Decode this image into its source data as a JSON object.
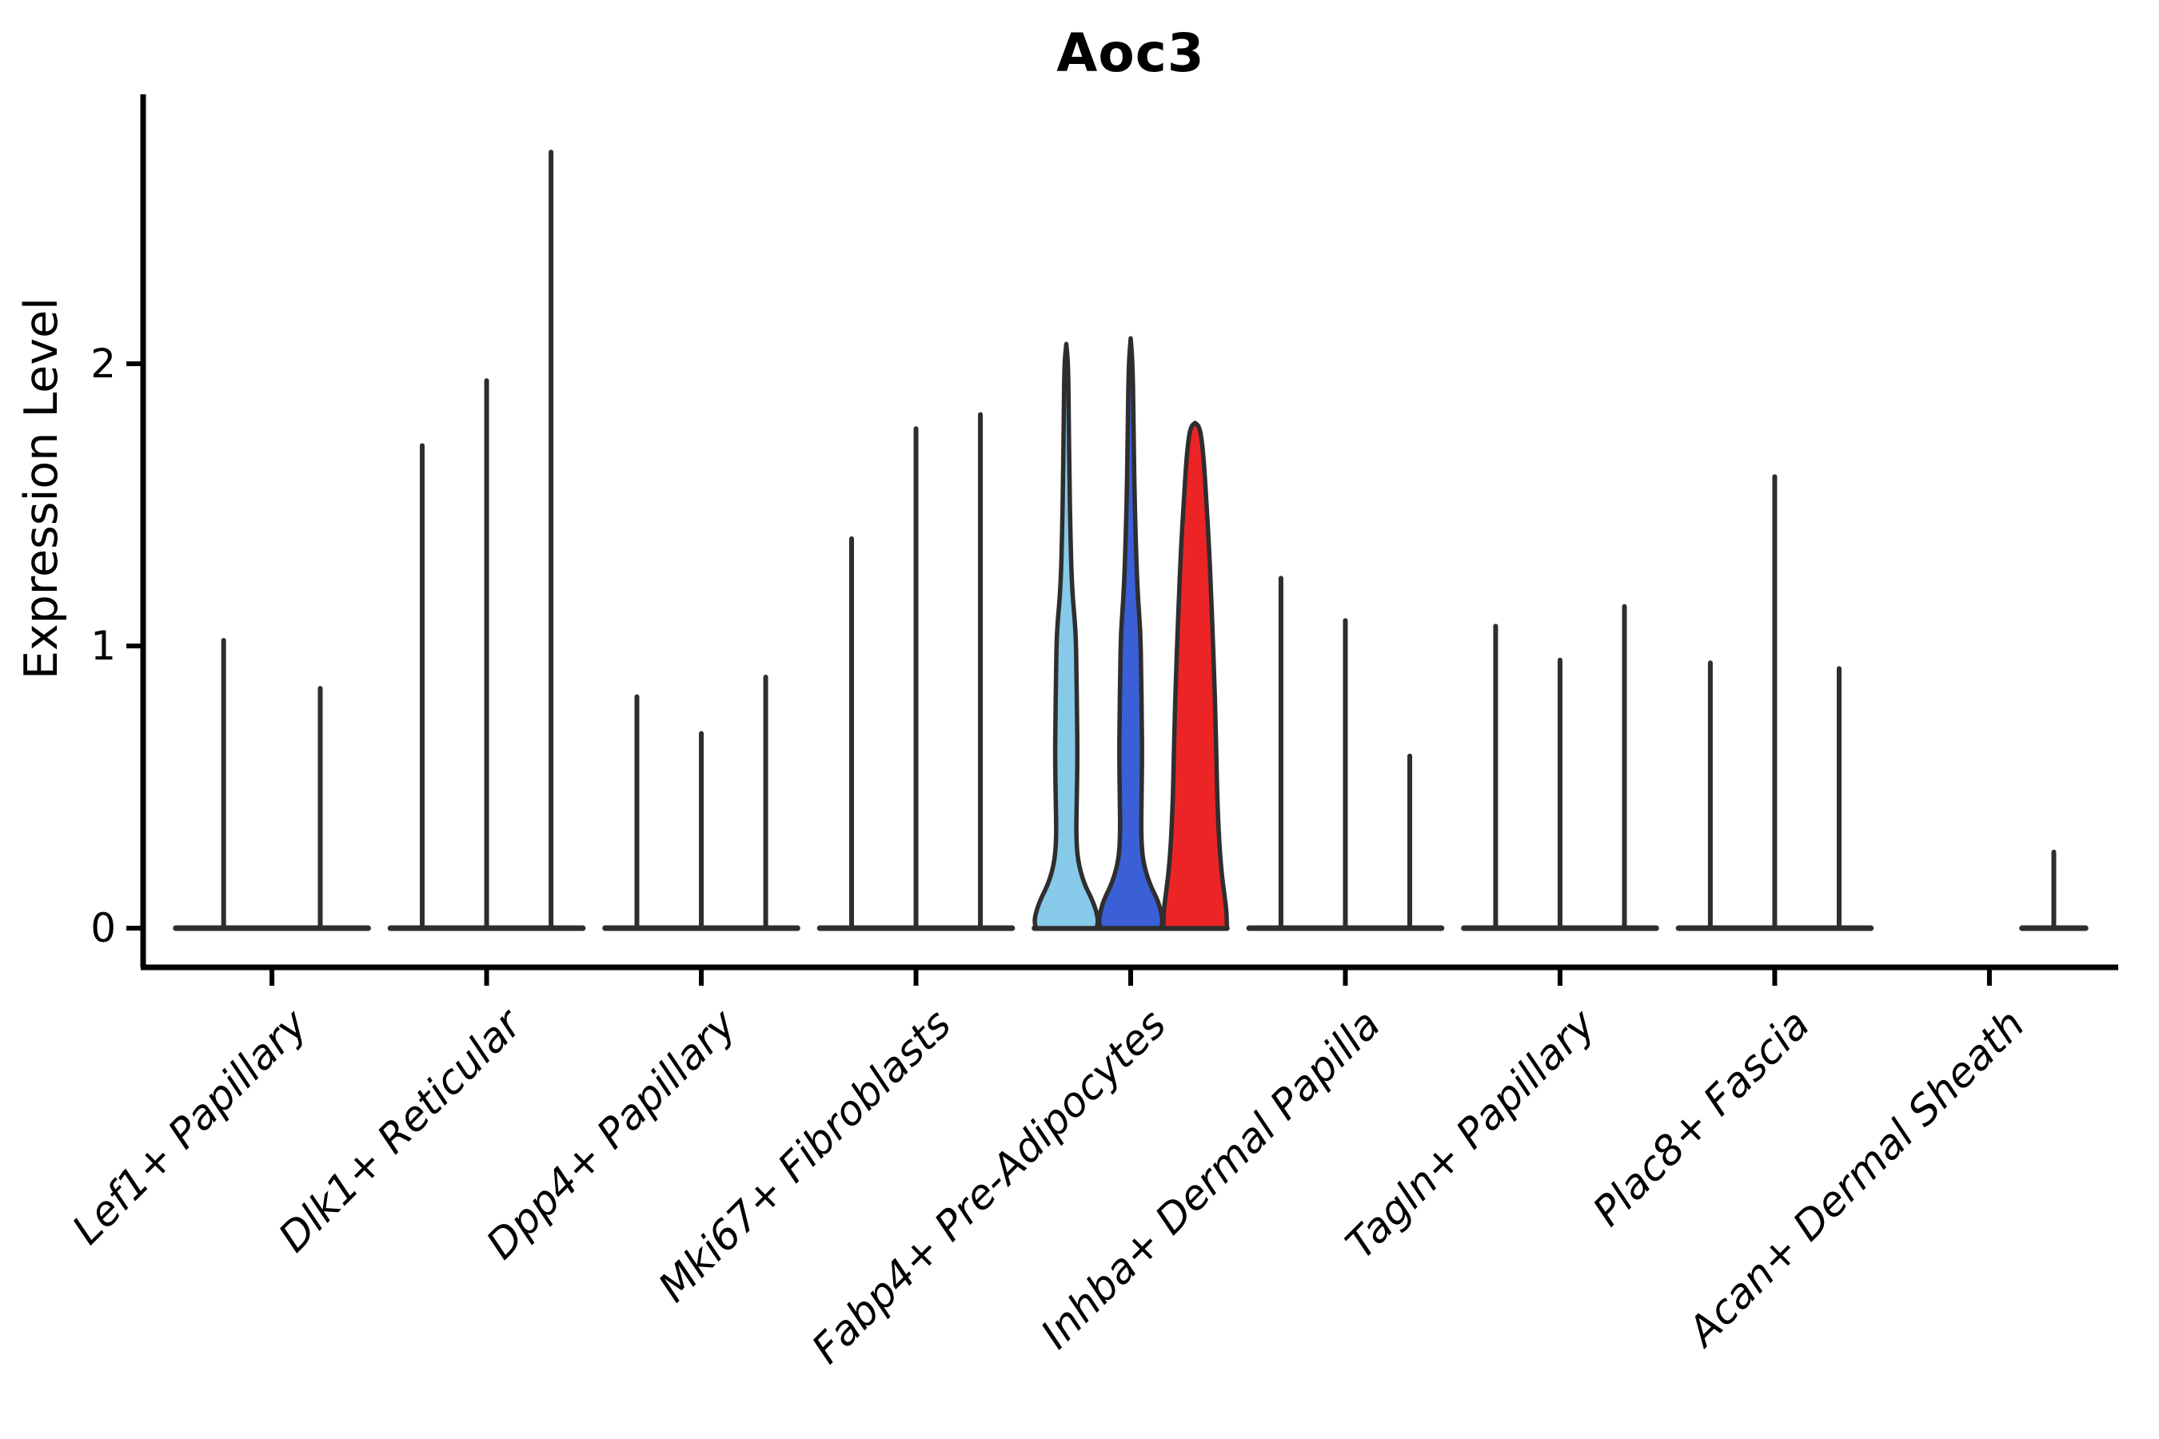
{
  "title": "Aoc3",
  "chart_data": {
    "type": "violin",
    "title": "Aoc3",
    "xlabel": "",
    "ylabel": "Expression Level",
    "ylim": [
      0,
      2.95
    ],
    "yticks": [
      0,
      1,
      2
    ],
    "grid": false,
    "legend": "none",
    "outline_color": "#2e2e2e",
    "split_colors": {
      "lightblue": "#87c9e8",
      "blue": "#3a5fd7",
      "red": "#ec2426"
    },
    "categories": [
      "Lef1+ Papillary",
      "Dlk1+ Reticular",
      "Dpp4+ Papillary",
      "Mki67+ Fibroblasts",
      "Fabp4+ Pre-Adipocytes",
      "Inhba+ Dermal Papilla",
      "Tagln+ Papillary",
      "Plac8+ Fascia",
      "Acan+ Dermal Sheath"
    ],
    "groups": [
      {
        "category": "Lef1+ Papillary",
        "violins": [
          {
            "slot": 0,
            "of": 2,
            "max": 1.02
          },
          {
            "slot": 1,
            "of": 2,
            "max": 0.85
          }
        ]
      },
      {
        "category": "Dlk1+ Reticular",
        "violins": [
          {
            "slot": 0,
            "of": 3,
            "max": 1.71
          },
          {
            "slot": 1,
            "of": 3,
            "max": 1.94
          },
          {
            "slot": 2,
            "of": 3,
            "max": 2.75
          }
        ]
      },
      {
        "category": "Dpp4+ Papillary",
        "violins": [
          {
            "slot": 0,
            "of": 3,
            "max": 0.82
          },
          {
            "slot": 1,
            "of": 3,
            "max": 0.69
          },
          {
            "slot": 2,
            "of": 3,
            "max": 0.89
          }
        ]
      },
      {
        "category": "Mki67+ Fibroblasts",
        "violins": [
          {
            "slot": 0,
            "of": 3,
            "max": 1.38
          },
          {
            "slot": 1,
            "of": 3,
            "max": 1.77
          },
          {
            "slot": 2,
            "of": 3,
            "max": 1.82
          }
        ]
      },
      {
        "category": "Fabp4+ Pre-Adipocytes",
        "violins": [
          {
            "slot": 0,
            "of": 3,
            "max": 2.07,
            "fill": "lightblue",
            "profile": [
              [
                2.07,
                0
              ],
              [
                2.0,
                0.06
              ],
              [
                1.8,
                0.08
              ],
              [
                1.6,
                0.1
              ],
              [
                1.4,
                0.13
              ],
              [
                1.2,
                0.18
              ],
              [
                1.05,
                0.3
              ],
              [
                0.9,
                0.32
              ],
              [
                0.75,
                0.34
              ],
              [
                0.6,
                0.35
              ],
              [
                0.45,
                0.33
              ],
              [
                0.33,
                0.31
              ],
              [
                0.24,
                0.36
              ],
              [
                0.16,
                0.55
              ],
              [
                0.1,
                0.82
              ],
              [
                0.05,
                0.97
              ],
              [
                0.02,
                1.0
              ],
              [
                0,
                0.95
              ]
            ]
          },
          {
            "slot": 1,
            "of": 3,
            "max": 2.09,
            "fill": "blue",
            "profile": [
              [
                2.09,
                0
              ],
              [
                2.0,
                0.06
              ],
              [
                1.8,
                0.09
              ],
              [
                1.6,
                0.11
              ],
              [
                1.4,
                0.15
              ],
              [
                1.2,
                0.21
              ],
              [
                1.05,
                0.31
              ],
              [
                0.9,
                0.33
              ],
              [
                0.75,
                0.35
              ],
              [
                0.6,
                0.36
              ],
              [
                0.45,
                0.34
              ],
              [
                0.33,
                0.33
              ],
              [
                0.24,
                0.38
              ],
              [
                0.16,
                0.58
              ],
              [
                0.1,
                0.85
              ],
              [
                0.05,
                0.97
              ],
              [
                0.02,
                1.0
              ],
              [
                0,
                0.95
              ]
            ]
          },
          {
            "slot": 2,
            "of": 3,
            "max": 1.79,
            "fill": "red",
            "profile": [
              [
                1.79,
                0
              ],
              [
                1.78,
                0.12
              ],
              [
                1.74,
                0.2
              ],
              [
                1.65,
                0.28
              ],
              [
                1.5,
                0.36
              ],
              [
                1.35,
                0.44
              ],
              [
                1.2,
                0.5
              ],
              [
                1.05,
                0.55
              ],
              [
                0.9,
                0.6
              ],
              [
                0.75,
                0.64
              ],
              [
                0.6,
                0.67
              ],
              [
                0.45,
                0.7
              ],
              [
                0.3,
                0.76
              ],
              [
                0.2,
                0.83
              ],
              [
                0.12,
                0.92
              ],
              [
                0.06,
                0.99
              ],
              [
                0,
                1.0
              ]
            ]
          }
        ]
      },
      {
        "category": "Inhba+ Dermal Papilla",
        "violins": [
          {
            "slot": 0,
            "of": 3,
            "max": 1.24
          },
          {
            "slot": 1,
            "of": 3,
            "max": 1.09
          },
          {
            "slot": 2,
            "of": 3,
            "max": 0.61
          }
        ]
      },
      {
        "category": "Tagln+ Papillary",
        "violins": [
          {
            "slot": 0,
            "of": 3,
            "max": 1.07
          },
          {
            "slot": 1,
            "of": 3,
            "max": 0.95
          },
          {
            "slot": 2,
            "of": 3,
            "max": 1.14
          }
        ]
      },
      {
        "category": "Plac8+ Fascia",
        "violins": [
          {
            "slot": 0,
            "of": 3,
            "max": 0.94
          },
          {
            "slot": 1,
            "of": 3,
            "max": 1.6
          },
          {
            "slot": 2,
            "of": 3,
            "max": 0.92
          }
        ]
      },
      {
        "category": "Acan+ Dermal Sheath",
        "violins": [
          {
            "slot": 2,
            "of": 3,
            "max": 0.27
          }
        ]
      }
    ]
  }
}
